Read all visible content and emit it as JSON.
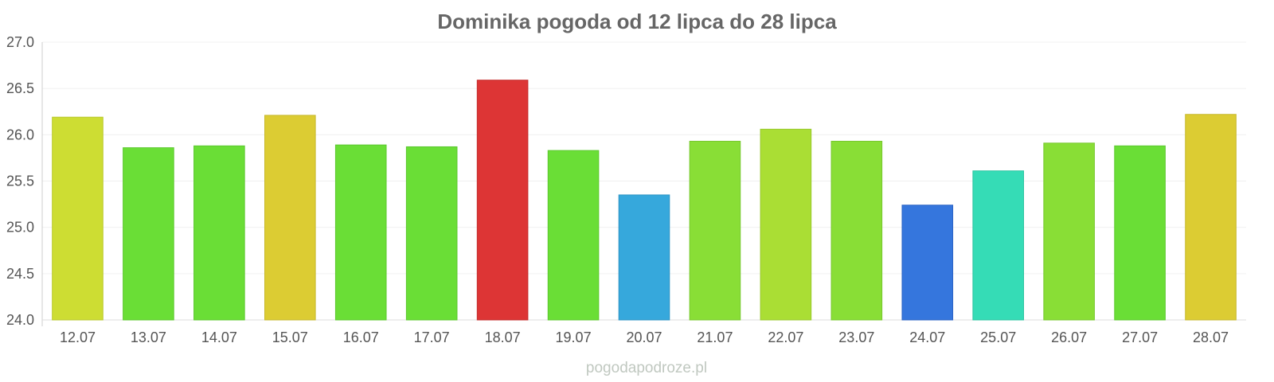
{
  "chart_data": {
    "type": "bar",
    "title": "Dominika pogoda od 12 lipca do 28 lipca",
    "xlabel": "",
    "ylabel": "",
    "ylim": [
      24.0,
      27.0
    ],
    "y_ticks": [
      "24.0",
      "24.5",
      "25.0",
      "25.5",
      "26.0",
      "26.5",
      "27.0"
    ],
    "grid": true,
    "legend": "none",
    "categories": [
      "12.07",
      "13.07",
      "14.07",
      "15.07",
      "16.07",
      "17.07",
      "18.07",
      "19.07",
      "20.07",
      "21.07",
      "22.07",
      "23.07",
      "24.07",
      "25.07",
      "26.07",
      "27.07",
      "28.07"
    ],
    "values": [
      26.19,
      25.86,
      25.88,
      26.21,
      25.89,
      25.87,
      26.59,
      25.83,
      25.35,
      25.93,
      26.06,
      25.93,
      25.24,
      25.61,
      25.91,
      25.88,
      26.22
    ],
    "colors": [
      "#cddd33",
      "#6ade36",
      "#6ade36",
      "#dccc33",
      "#6ade36",
      "#6ade36",
      "#dd3535",
      "#6ade36",
      "#36a8dc",
      "#89de36",
      "#aade34",
      "#89de36",
      "#3576dd",
      "#35dcb6",
      "#89de36",
      "#6ade36",
      "#dccc33"
    ],
    "border_colors": [
      "#b9c82c",
      "#5cc82e",
      "#5cc82e",
      "#c6b82c",
      "#5cc82e",
      "#5cc82e",
      "#c42c2c",
      "#5cc82e",
      "#2c94c4",
      "#77c82e",
      "#98c82c",
      "#77c82e",
      "#2c64c4",
      "#2cc4a0",
      "#77c82e",
      "#5cc82e",
      "#c6b82c"
    ]
  },
  "watermark": "pogodapodroze.pl"
}
